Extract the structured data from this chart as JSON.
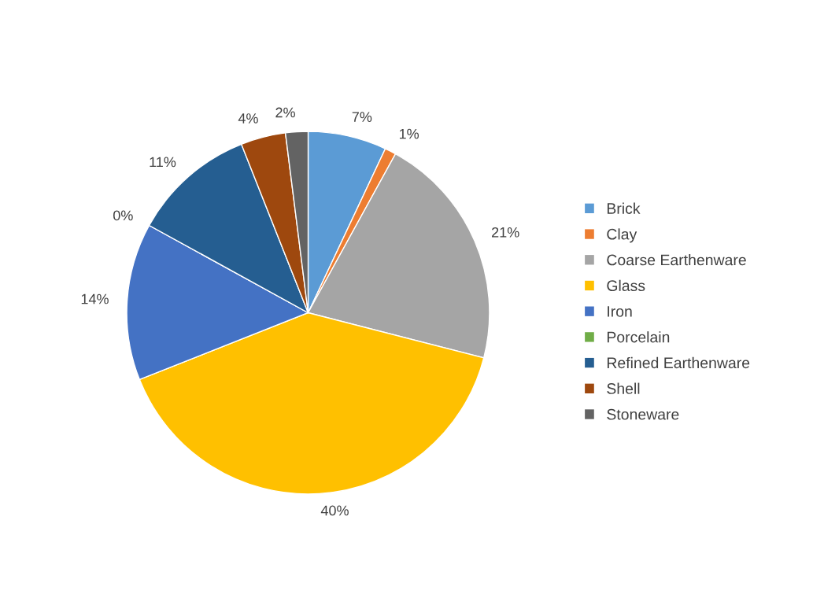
{
  "chart_data": {
    "type": "pie",
    "categories": [
      "Brick",
      "Clay",
      "Coarse Earthenware",
      "Glass",
      "Iron",
      "Porcelain",
      "Refined Earthenware",
      "Shell",
      "Stoneware"
    ],
    "values": [
      7,
      1,
      21,
      40,
      14,
      0,
      11,
      4,
      2
    ],
    "value_labels": [
      "7%",
      "1%",
      "21%",
      "40%",
      "14%",
      "0%",
      "11%",
      "4%",
      "2%"
    ],
    "colors": [
      "#5b9bd5",
      "#ed7d31",
      "#a5a5a5",
      "#ffc000",
      "#4472c4",
      "#70ad47",
      "#255e91",
      "#9e480e",
      "#636363"
    ],
    "legend": "right"
  }
}
